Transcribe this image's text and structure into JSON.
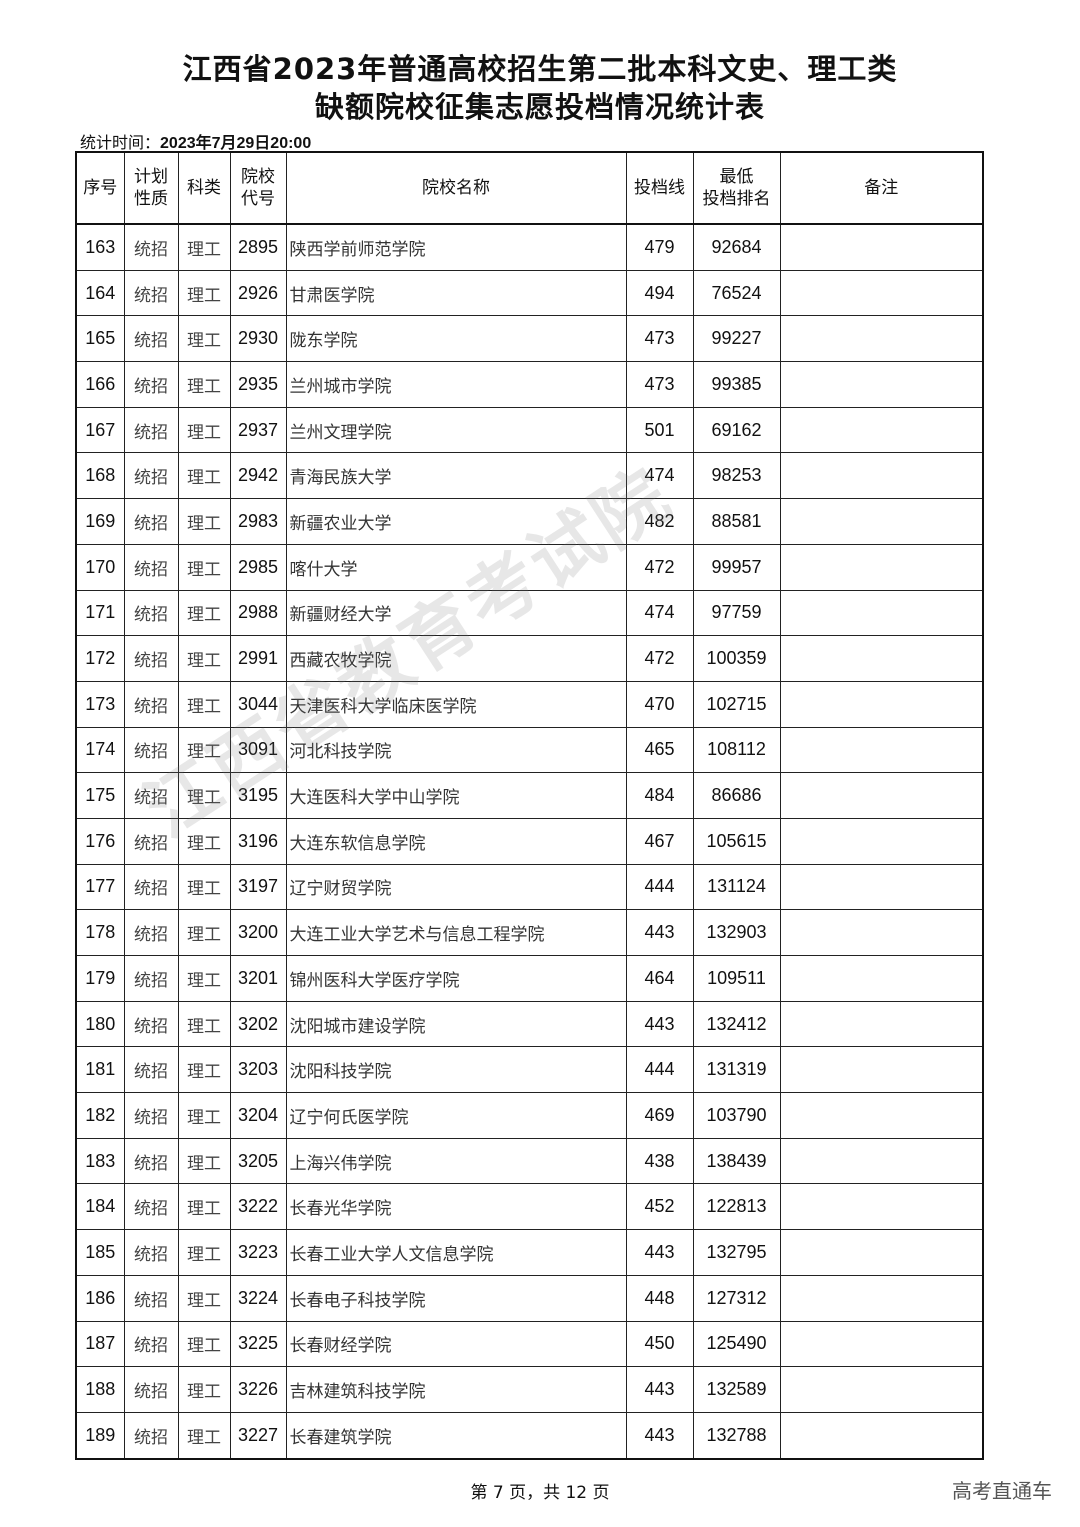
{
  "title_line1": "江西省2023年普通高校招生第二批本科文史、理工类",
  "title_line2": "缺额院校征集志愿投档情况统计表",
  "stat_label": "统计时间：",
  "stat_value": "2023年7月29日20:00",
  "columns": [
    "序号",
    "计划\n性质",
    "科类",
    "院校\n代号",
    "院校名称",
    "投档线",
    "最低\n投档排名",
    "备注"
  ],
  "rows": [
    [
      "163",
      "统招",
      "理工",
      "2895",
      "陕西学前师范学院",
      "479",
      "92684",
      ""
    ],
    [
      "164",
      "统招",
      "理工",
      "2926",
      "甘肃医学院",
      "494",
      "76524",
      ""
    ],
    [
      "165",
      "统招",
      "理工",
      "2930",
      "陇东学院",
      "473",
      "99227",
      ""
    ],
    [
      "166",
      "统招",
      "理工",
      "2935",
      "兰州城市学院",
      "473",
      "99385",
      ""
    ],
    [
      "167",
      "统招",
      "理工",
      "2937",
      "兰州文理学院",
      "501",
      "69162",
      ""
    ],
    [
      "168",
      "统招",
      "理工",
      "2942",
      "青海民族大学",
      "474",
      "98253",
      ""
    ],
    [
      "169",
      "统招",
      "理工",
      "2983",
      "新疆农业大学",
      "482",
      "88581",
      ""
    ],
    [
      "170",
      "统招",
      "理工",
      "2985",
      "喀什大学",
      "472",
      "99957",
      ""
    ],
    [
      "171",
      "统招",
      "理工",
      "2988",
      "新疆财经大学",
      "474",
      "97759",
      ""
    ],
    [
      "172",
      "统招",
      "理工",
      "2991",
      "西藏农牧学院",
      "472",
      "100359",
      ""
    ],
    [
      "173",
      "统招",
      "理工",
      "3044",
      "天津医科大学临床医学院",
      "470",
      "102715",
      ""
    ],
    [
      "174",
      "统招",
      "理工",
      "3091",
      "河北科技学院",
      "465",
      "108112",
      ""
    ],
    [
      "175",
      "统招",
      "理工",
      "3195",
      "大连医科大学中山学院",
      "484",
      "86686",
      ""
    ],
    [
      "176",
      "统招",
      "理工",
      "3196",
      "大连东软信息学院",
      "467",
      "105615",
      ""
    ],
    [
      "177",
      "统招",
      "理工",
      "3197",
      "辽宁财贸学院",
      "444",
      "131124",
      ""
    ],
    [
      "178",
      "统招",
      "理工",
      "3200",
      "大连工业大学艺术与信息工程学院",
      "443",
      "132903",
      ""
    ],
    [
      "179",
      "统招",
      "理工",
      "3201",
      "锦州医科大学医疗学院",
      "464",
      "109511",
      ""
    ],
    [
      "180",
      "统招",
      "理工",
      "3202",
      "沈阳城市建设学院",
      "443",
      "132412",
      ""
    ],
    [
      "181",
      "统招",
      "理工",
      "3203",
      "沈阳科技学院",
      "444",
      "131319",
      ""
    ],
    [
      "182",
      "统招",
      "理工",
      "3204",
      "辽宁何氏医学院",
      "469",
      "103790",
      ""
    ],
    [
      "183",
      "统招",
      "理工",
      "3205",
      "上海兴伟学院",
      "438",
      "138439",
      ""
    ],
    [
      "184",
      "统招",
      "理工",
      "3222",
      "长春光华学院",
      "452",
      "122813",
      ""
    ],
    [
      "185",
      "统招",
      "理工",
      "3223",
      "长春工业大学人文信息学院",
      "443",
      "132795",
      ""
    ],
    [
      "186",
      "统招",
      "理工",
      "3224",
      "长春电子科技学院",
      "448",
      "127312",
      ""
    ],
    [
      "187",
      "统招",
      "理工",
      "3225",
      "长春财经学院",
      "450",
      "125490",
      ""
    ],
    [
      "188",
      "统招",
      "理工",
      "3226",
      "吉林建筑科技学院",
      "443",
      "132589",
      ""
    ],
    [
      "189",
      "统招",
      "理工",
      "3227",
      "长春建筑学院",
      "443",
      "132788",
      ""
    ]
  ],
  "watermark": "江西省教育考试院",
  "footer": "第 7 页，共 12 页",
  "brand": "高考直通车"
}
